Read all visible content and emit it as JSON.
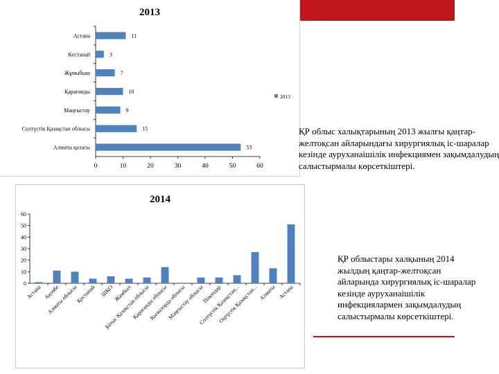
{
  "colors": {
    "bar": "#4f81bd",
    "accent": "#c0161c"
  },
  "chart_data": [
    {
      "type": "bar",
      "orientation": "horizontal",
      "title": "2013",
      "categories": [
        "Астана",
        "Кестанай",
        "Жұмыбыш",
        "Қарағанды",
        "Маңғыстау",
        "Солтүстік Қазақстан облысы",
        "Алматы қаласы"
      ],
      "values": [
        11,
        3,
        7,
        10,
        9,
        15,
        53
      ],
      "xlim": [
        0,
        60
      ],
      "xticks": [
        0,
        10,
        20,
        30,
        40,
        50,
        60
      ],
      "legend": {
        "label": "2013",
        "position": "right"
      },
      "grid": false
    },
    {
      "type": "bar",
      "orientation": "vertical",
      "title": "2014",
      "categories": [
        "Астана",
        "Ақтөбе",
        "Алматы облысы",
        "Қостанай",
        "ШҚО",
        "Жамбыл",
        "Батыс Қазақстан облысы",
        "Қарағанды облысы",
        "Қызылорда облысы",
        "Маңғыстау облысы",
        "Павлодар",
        "Солтүстік Қазақстан...",
        "Оңтүстік Қазақстан...",
        "Алматы",
        "Астана"
      ],
      "values": [
        1,
        11,
        10,
        4,
        6,
        4,
        5,
        14,
        0,
        5,
        5,
        7,
        27,
        13,
        51
      ],
      "ylim": [
        0,
        60
      ],
      "yticks": [
        0,
        10,
        20,
        30,
        40,
        50,
        60
      ],
      "grid": false
    }
  ],
  "captions": {
    "first": "ҚР облыс халықтарының 2013 жылғы қаңтар-желтоқсан айларындағы хирургиялық іс-шаралар кезінде ауруханаішілік инфекциямен зақымдалудың салыстырмалы көрсеткіштері.",
    "second": "ҚР облыстары халқының 2014 жылдың қаңтар-желтоқсан айларында хирургиялық іс-шаралар кезінде ауруханаішілік инфекциялармен зақымдалудың салыстырмалы көрсеткіштері."
  }
}
